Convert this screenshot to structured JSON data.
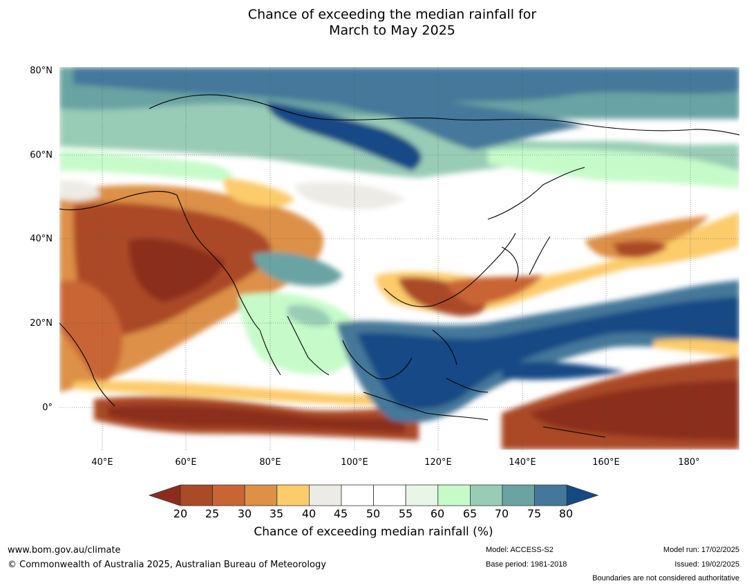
{
  "title_line1": "Chance of exceeding the median rainfall for",
  "title_line2": "March to May 2025",
  "lat_labels": [
    "80°N",
    "60°N",
    "40°N",
    "20°N",
    "0°"
  ],
  "lon_labels": [
    "40°E",
    "60°E",
    "80°E",
    "100°E",
    "120°E",
    "140°E",
    "160°E",
    "180°"
  ],
  "colorbar": {
    "ticks": [
      "20",
      "25",
      "30",
      "35",
      "40",
      "45",
      "50",
      "55",
      "60",
      "65",
      "70",
      "75",
      "80"
    ],
    "colors": [
      "#8c2d1c",
      "#ab4a26",
      "#c96535",
      "#dd9046",
      "#fccb6a",
      "#ecebe5",
      "#ffffff",
      "#ffffff",
      "#e8f6e8",
      "#c6fbc9",
      "#99ccb6",
      "#6ba3a3",
      "#44789a",
      "#134a85"
    ],
    "label": "Chance of exceeding median rainfall (%)"
  },
  "footer": {
    "url": "www.bom.gov.au/climate",
    "copyright": "© Commonwealth of Australia 2025, Australian Bureau of Meteorology",
    "model": "Model: ACCESS-S2",
    "base_period": "Base period: 1981-2018",
    "model_run": "Model run: 17/02/2025",
    "issued": "Issued: 19/02/2025",
    "boundaries_note": "Boundaries are not considered authoritative"
  }
}
